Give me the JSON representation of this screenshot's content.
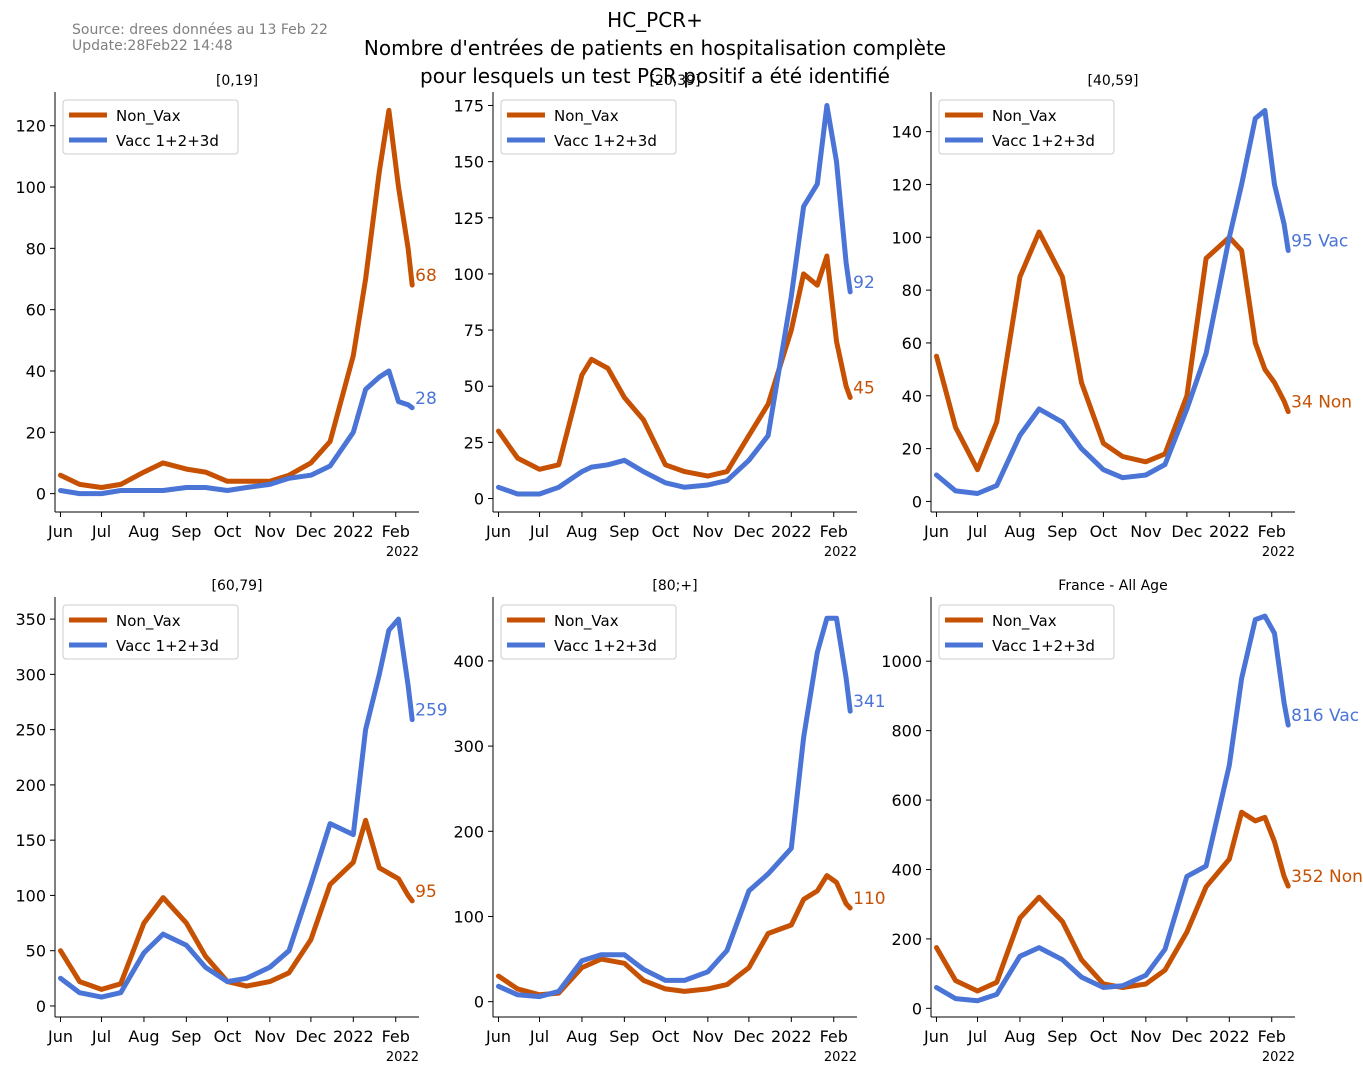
{
  "header": {
    "title_line1": "HC_PCR+",
    "title_line2": "Nombre d'entrées de patients en hospitalisation complète",
    "title_line3": "pour lesquels un test PCR positif a été identifié",
    "source": "Source: drees données au 13 Feb 22",
    "update": "Update:28Feb22 14:48"
  },
  "colors": {
    "non_vax": "#c65102",
    "vax": "#4a74d6"
  },
  "x_ticks": [
    "Jun",
    "Jul",
    "Aug",
    "Sep",
    "Oct",
    "Nov",
    "Dec",
    "2022",
    "Feb"
  ],
  "x_offset_label": "2022",
  "legend_labels": [
    "Non_Vax",
    "Vacc 1+2+3d"
  ],
  "chart_data": [
    {
      "type": "line",
      "title": "[0,19]",
      "ylim": [
        -6,
        131
      ],
      "yticks": [
        0,
        20,
        40,
        60,
        80,
        100,
        120
      ],
      "x": [
        "2021-06-01",
        "2021-06-15",
        "2021-07-01",
        "2021-07-15",
        "2021-08-01",
        "2021-08-15",
        "2021-09-01",
        "2021-09-15",
        "2021-10-01",
        "2021-10-15",
        "2021-11-01",
        "2021-11-15",
        "2021-12-01",
        "2021-12-15",
        "2022-01-01",
        "2022-01-10",
        "2022-01-20",
        "2022-01-27",
        "2022-02-03",
        "2022-02-10",
        "2022-02-13"
      ],
      "series": [
        {
          "name": "Non_Vax",
          "values": [
            6,
            3,
            2,
            3,
            7,
            10,
            8,
            7,
            4,
            4,
            4,
            6,
            10,
            17,
            45,
            70,
            105,
            125,
            100,
            80,
            68
          ],
          "end_label": "68"
        },
        {
          "name": "Vacc 1+2+3d",
          "values": [
            1,
            0,
            0,
            1,
            1,
            1,
            2,
            2,
            1,
            2,
            3,
            5,
            6,
            9,
            20,
            34,
            38,
            40,
            30,
            29,
            28
          ],
          "end_label": "28"
        }
      ]
    },
    {
      "type": "line",
      "title": "[20,39]",
      "ylim": [
        -6,
        181
      ],
      "yticks": [
        0,
        25,
        50,
        75,
        100,
        125,
        150,
        175
      ],
      "x": [
        "2021-06-01",
        "2021-06-15",
        "2021-07-01",
        "2021-07-15",
        "2021-08-01",
        "2021-08-08",
        "2021-08-20",
        "2021-09-01",
        "2021-09-15",
        "2021-10-01",
        "2021-10-15",
        "2021-11-01",
        "2021-11-15",
        "2021-12-01",
        "2021-12-15",
        "2022-01-01",
        "2022-01-10",
        "2022-01-20",
        "2022-01-27",
        "2022-02-03",
        "2022-02-10",
        "2022-02-13"
      ],
      "series": [
        {
          "name": "Non_Vax",
          "values": [
            30,
            18,
            13,
            15,
            55,
            62,
            58,
            45,
            35,
            15,
            12,
            10,
            12,
            28,
            42,
            75,
            100,
            95,
            108,
            70,
            50,
            45
          ],
          "end_label": "45"
        },
        {
          "name": "Vacc 1+2+3d",
          "values": [
            5,
            2,
            2,
            5,
            12,
            14,
            15,
            17,
            12,
            7,
            5,
            6,
            8,
            17,
            28,
            90,
            130,
            140,
            175,
            150,
            105,
            92
          ],
          "end_label": "92"
        }
      ]
    },
    {
      "type": "line",
      "title": "[40,59]",
      "ylim": [
        -4,
        155
      ],
      "yticks": [
        0,
        20,
        40,
        60,
        80,
        100,
        120,
        140
      ],
      "x": [
        "2021-06-01",
        "2021-06-15",
        "2021-07-01",
        "2021-07-15",
        "2021-08-01",
        "2021-08-15",
        "2021-09-01",
        "2021-09-15",
        "2021-10-01",
        "2021-10-15",
        "2021-11-01",
        "2021-11-15",
        "2021-12-01",
        "2021-12-15",
        "2022-01-01",
        "2022-01-10",
        "2022-01-20",
        "2022-01-27",
        "2022-02-03",
        "2022-02-10",
        "2022-02-13"
      ],
      "series": [
        {
          "name": "Non_Vax",
          "values": [
            55,
            28,
            12,
            30,
            85,
            102,
            85,
            45,
            22,
            17,
            15,
            18,
            40,
            92,
            100,
            95,
            60,
            50,
            45,
            38,
            34
          ],
          "end_label": "34 Non"
        },
        {
          "name": "Vacc 1+2+3d",
          "values": [
            10,
            4,
            3,
            6,
            25,
            35,
            30,
            20,
            12,
            9,
            10,
            14,
            35,
            56,
            100,
            120,
            145,
            148,
            120,
            105,
            95
          ],
          "end_label": "95 Vac"
        }
      ]
    },
    {
      "type": "line",
      "title": "[60,79]",
      "ylim": [
        -10,
        370
      ],
      "yticks": [
        0,
        50,
        100,
        150,
        200,
        250,
        300,
        350
      ],
      "x": [
        "2021-06-01",
        "2021-06-15",
        "2021-07-01",
        "2021-07-15",
        "2021-08-01",
        "2021-08-15",
        "2021-09-01",
        "2021-09-15",
        "2021-10-01",
        "2021-10-15",
        "2021-11-01",
        "2021-11-15",
        "2021-12-01",
        "2021-12-15",
        "2022-01-01",
        "2022-01-10",
        "2022-01-20",
        "2022-01-27",
        "2022-02-03",
        "2022-02-10",
        "2022-02-13"
      ],
      "series": [
        {
          "name": "Non_Vax",
          "values": [
            50,
            22,
            15,
            20,
            75,
            98,
            75,
            45,
            22,
            18,
            22,
            30,
            60,
            110,
            130,
            168,
            125,
            120,
            115,
            100,
            95
          ],
          "end_label": "95"
        },
        {
          "name": "Vacc 1+2+3d",
          "values": [
            25,
            12,
            8,
            12,
            48,
            65,
            55,
            35,
            22,
            25,
            35,
            50,
            110,
            165,
            155,
            250,
            300,
            340,
            350,
            290,
            259
          ],
          "end_label": "259"
        }
      ]
    },
    {
      "type": "line",
      "title": "[80;+]",
      "ylim": [
        -18,
        475
      ],
      "yticks": [
        0,
        100,
        200,
        300,
        400
      ],
      "x": [
        "2021-06-01",
        "2021-06-15",
        "2021-07-01",
        "2021-07-15",
        "2021-08-01",
        "2021-08-15",
        "2021-09-01",
        "2021-09-15",
        "2021-10-01",
        "2021-10-15",
        "2021-11-01",
        "2021-11-15",
        "2021-12-01",
        "2021-12-15",
        "2022-01-01",
        "2022-01-10",
        "2022-01-20",
        "2022-01-27",
        "2022-02-03",
        "2022-02-10",
        "2022-02-13"
      ],
      "series": [
        {
          "name": "Non_Vax",
          "values": [
            30,
            15,
            8,
            10,
            40,
            50,
            45,
            25,
            15,
            12,
            15,
            20,
            40,
            80,
            90,
            120,
            130,
            148,
            140,
            115,
            110
          ],
          "end_label": "110"
        },
        {
          "name": "Vacc 1+2+3d",
          "values": [
            18,
            8,
            6,
            12,
            48,
            55,
            55,
            38,
            25,
            25,
            35,
            60,
            130,
            150,
            180,
            310,
            410,
            450,
            450,
            380,
            341
          ],
          "end_label": "341"
        }
      ]
    },
    {
      "type": "line",
      "title": "France - All Age",
      "ylim": [
        -25,
        1185
      ],
      "yticks": [
        0,
        200,
        400,
        600,
        800,
        1000
      ],
      "x": [
        "2021-06-01",
        "2021-06-15",
        "2021-07-01",
        "2021-07-15",
        "2021-08-01",
        "2021-08-15",
        "2021-09-01",
        "2021-09-15",
        "2021-10-01",
        "2021-10-15",
        "2021-11-01",
        "2021-11-15",
        "2021-12-01",
        "2021-12-15",
        "2022-01-01",
        "2022-01-10",
        "2022-01-20",
        "2022-01-27",
        "2022-02-03",
        "2022-02-10",
        "2022-02-13"
      ],
      "series": [
        {
          "name": "Non_Vax",
          "values": [
            175,
            80,
            50,
            75,
            260,
            320,
            250,
            140,
            70,
            60,
            70,
            110,
            220,
            350,
            430,
            565,
            540,
            550,
            480,
            380,
            352
          ],
          "end_label": "352 Non"
        },
        {
          "name": "Vacc 1+2+3d",
          "values": [
            60,
            28,
            22,
            40,
            150,
            175,
            140,
            90,
            60,
            65,
            95,
            170,
            380,
            410,
            700,
            950,
            1120,
            1130,
            1080,
            880,
            816
          ],
          "end_label": "816 Vac"
        }
      ]
    }
  ]
}
